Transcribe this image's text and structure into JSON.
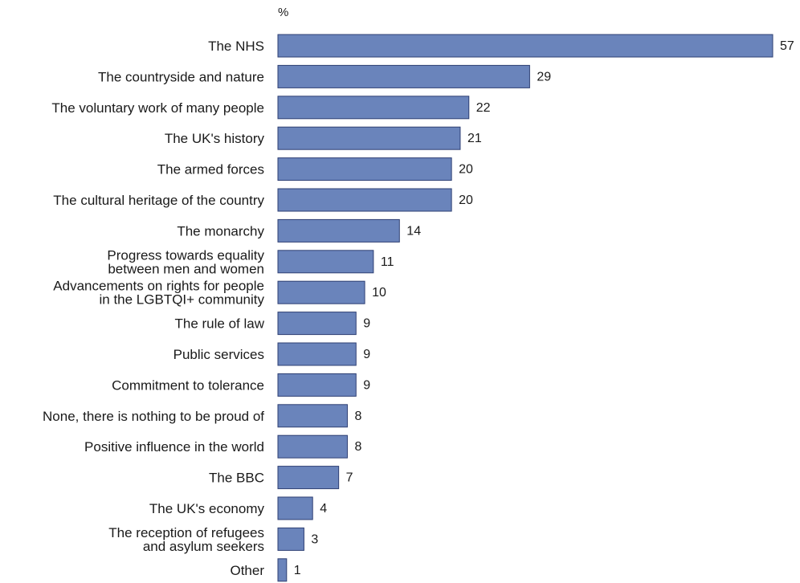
{
  "chart_data": {
    "type": "bar",
    "orientation": "horizontal",
    "unit_label": "%",
    "title": "",
    "xlabel": "",
    "ylabel": "",
    "categories": [
      [
        "The NHS"
      ],
      [
        "The countryside and nature"
      ],
      [
        "The voluntary work of many people"
      ],
      [
        "The UK's history"
      ],
      [
        "The armed forces"
      ],
      [
        "The cultural heritage of the country"
      ],
      [
        "The monarchy"
      ],
      [
        "Progress towards equality",
        "between men and women"
      ],
      [
        "Advancements on rights for people",
        "in the LGBTQI+ community"
      ],
      [
        "The rule of law"
      ],
      [
        "Public services"
      ],
      [
        "Commitment to tolerance"
      ],
      [
        "None, there is nothing to be proud of"
      ],
      [
        "Positive influence in the world"
      ],
      [
        "The BBC"
      ],
      [
        "The UK's economy"
      ],
      [
        "The reception of refugees",
        "and asylum seekers"
      ],
      [
        "Other"
      ]
    ],
    "values": [
      57,
      29,
      22,
      21,
      20,
      20,
      14,
      11,
      10,
      9,
      9,
      9,
      8,
      8,
      7,
      4,
      3,
      1
    ],
    "xlim": [
      0,
      57
    ],
    "grid": false,
    "legend": "none",
    "bar_color": "#6a84bb"
  }
}
